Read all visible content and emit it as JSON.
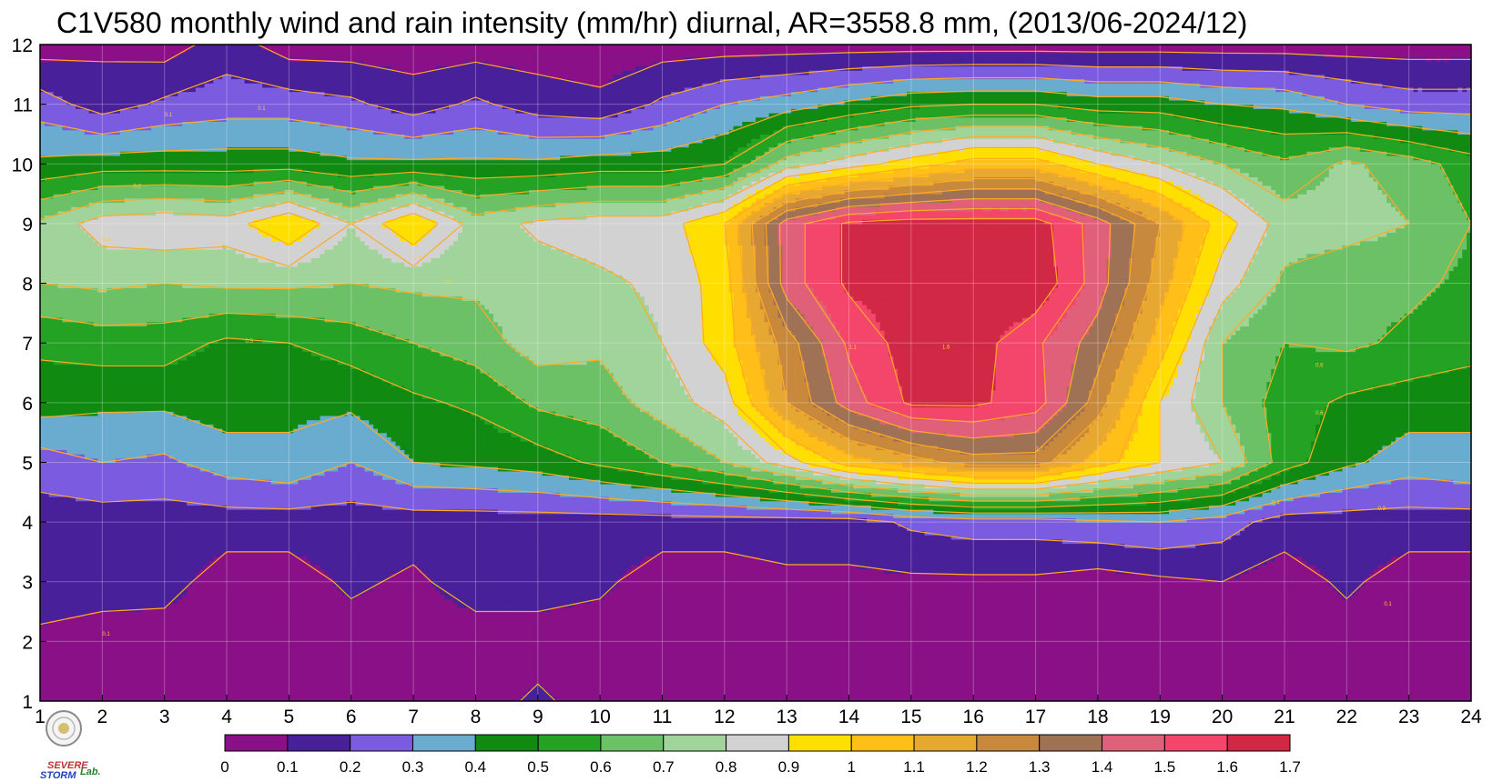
{
  "chart_data": {
    "type": "heatmap",
    "title": "C1V580 monthly wind and rain intensity (mm/hr) diurnal, AR=3558.8 mm, (2013/06-2024/12)",
    "xlabel": "",
    "ylabel": "",
    "xlim": [
      1,
      24
    ],
    "ylim": [
      1,
      12
    ],
    "x_ticks": [
      "1",
      "2",
      "3",
      "4",
      "5",
      "6",
      "7",
      "8",
      "9",
      "10",
      "11",
      "12",
      "13",
      "14",
      "15",
      "16",
      "17",
      "18",
      "19",
      "20",
      "21",
      "22",
      "23",
      "24"
    ],
    "y_ticks": [
      "1",
      "2",
      "3",
      "4",
      "5",
      "6",
      "7",
      "8",
      "9",
      "10",
      "11",
      "12"
    ],
    "grid": true,
    "levels": [
      0,
      0.1,
      0.2,
      0.3,
      0.4,
      0.5,
      0.6,
      0.7,
      0.8,
      0.9,
      1,
      1.1,
      1.2,
      1.3,
      1.4,
      1.5,
      1.6,
      1.7
    ],
    "colorbar_labels": [
      "0",
      "0.1",
      "0.2",
      "0.3",
      "0.4",
      "0.5",
      "0.6",
      "0.7",
      "0.8",
      "0.9",
      "1",
      "1.1",
      "1.2",
      "1.3",
      "1.4",
      "1.5",
      "1.6",
      "1.7"
    ],
    "colors": [
      "#8a1088",
      "#48209a",
      "#7b5ce0",
      "#6aacd0",
      "#118a12",
      "#24a224",
      "#6cc066",
      "#a0d49a",
      "#d2d2d2",
      "#ffdf00",
      "#ffbf18",
      "#e6a830",
      "#c8893c",
      "#a07255",
      "#e0607a",
      "#f4466a",
      "#d02845"
    ],
    "contour_line_color": "#ffaa22",
    "colorbar_placement": "bottom",
    "z": [
      [
        0.05,
        0.05,
        0.05,
        0.05,
        0.05,
        0.05,
        0.05,
        0.05,
        0.12,
        0.05,
        0.05,
        0.05,
        0.05,
        0.05,
        0.05,
        0.05,
        0.05,
        0.05,
        0.05,
        0.05,
        0.05,
        0.05,
        0.05,
        0.05
      ],
      [
        0.08,
        0.05,
        0.05,
        0.05,
        0.05,
        0.05,
        0.05,
        0.05,
        0.05,
        0.05,
        0.05,
        0.05,
        0.05,
        0.05,
        0.05,
        0.05,
        0.05,
        0.05,
        0.05,
        0.05,
        0.05,
        0.05,
        0.05,
        0.05
      ],
      [
        0.15,
        0.15,
        0.14,
        0.05,
        0.05,
        0.12,
        0.08,
        0.15,
        0.15,
        0.12,
        0.05,
        0.05,
        0.08,
        0.08,
        0.08,
        0.08,
        0.08,
        0.05,
        0.08,
        0.1,
        0.05,
        0.12,
        0.05,
        0.05
      ],
      [
        0.15,
        0.15,
        0.15,
        0.15,
        0.15,
        0.15,
        0.15,
        0.15,
        0.15,
        0.15,
        0.15,
        0.15,
        0.15,
        0.15,
        0.22,
        0.25,
        0.25,
        0.28,
        0.3,
        0.25,
        0.15,
        0.15,
        0.15,
        0.15
      ],
      [
        0.25,
        0.3,
        0.28,
        0.35,
        0.38,
        0.3,
        0.4,
        0.42,
        0.45,
        0.52,
        0.6,
        0.7,
        0.85,
        1.05,
        1.15,
        1.25,
        1.25,
        1.05,
        0.9,
        0.8,
        0.55,
        0.42,
        0.35,
        0.38
      ],
      [
        0.45,
        0.42,
        0.42,
        0.45,
        0.42,
        0.42,
        0.48,
        0.52,
        0.62,
        0.65,
        0.75,
        0.85,
        1.2,
        1.45,
        1.62,
        1.62,
        1.55,
        1.25,
        0.9,
        0.7,
        0.55,
        0.48,
        0.45,
        0.42
      ],
      [
        0.52,
        0.55,
        0.55,
        0.48,
        0.5,
        0.55,
        0.6,
        0.65,
        0.75,
        0.72,
        0.8,
        0.95,
        1.25,
        1.52,
        1.65,
        1.65,
        1.52,
        1.35,
        1.05,
        0.7,
        0.6,
        0.62,
        0.58,
        0.55
      ],
      [
        0.7,
        0.72,
        0.7,
        0.72,
        0.72,
        0.7,
        0.72,
        0.72,
        0.75,
        0.78,
        0.82,
        0.95,
        1.45,
        1.62,
        1.65,
        1.68,
        1.68,
        1.45,
        1.15,
        0.85,
        0.68,
        0.62,
        0.62,
        0.58
      ],
      [
        0.72,
        0.85,
        0.88,
        0.85,
        1.0,
        0.8,
        1.0,
        0.75,
        0.82,
        0.85,
        0.85,
        1.0,
        1.45,
        1.62,
        1.65,
        1.65,
        1.65,
        1.45,
        1.2,
        0.95,
        0.75,
        0.75,
        0.7,
        0.6
      ],
      [
        0.42,
        0.45,
        0.45,
        0.45,
        0.45,
        0.42,
        0.42,
        0.42,
        0.42,
        0.45,
        0.45,
        0.5,
        0.75,
        0.85,
        0.95,
        1.05,
        1.05,
        0.9,
        0.8,
        0.7,
        0.62,
        0.72,
        0.65,
        0.55
      ],
      [
        0.25,
        0.15,
        0.22,
        0.25,
        0.25,
        0.22,
        0.15,
        0.22,
        0.15,
        0.12,
        0.22,
        0.3,
        0.35,
        0.42,
        0.48,
        0.5,
        0.5,
        0.45,
        0.45,
        0.4,
        0.38,
        0.3,
        0.25,
        0.25
      ],
      [
        0.05,
        0.08,
        0.05,
        0.15,
        0.05,
        0.05,
        0.05,
        0.05,
        0.05,
        0.05,
        0.05,
        0.05,
        0.05,
        0.05,
        0.05,
        0.05,
        0.05,
        0.05,
        0.05,
        0.05,
        0.05,
        0.05,
        0.05,
        0.05
      ]
    ],
    "contour_labels": [
      "0.1",
      "0.1",
      "0.1",
      "0.2",
      "0.4",
      "0.5",
      "0.6",
      "0.7",
      "0.8",
      "1.1",
      "1.6",
      "1.7",
      "0.9",
      "0.6",
      "0.6",
      "0.4",
      "0.3",
      "0.1"
    ]
  },
  "logo": {
    "line1": "SEVERE",
    "line2": "STORM",
    "line3": "Lab."
  }
}
